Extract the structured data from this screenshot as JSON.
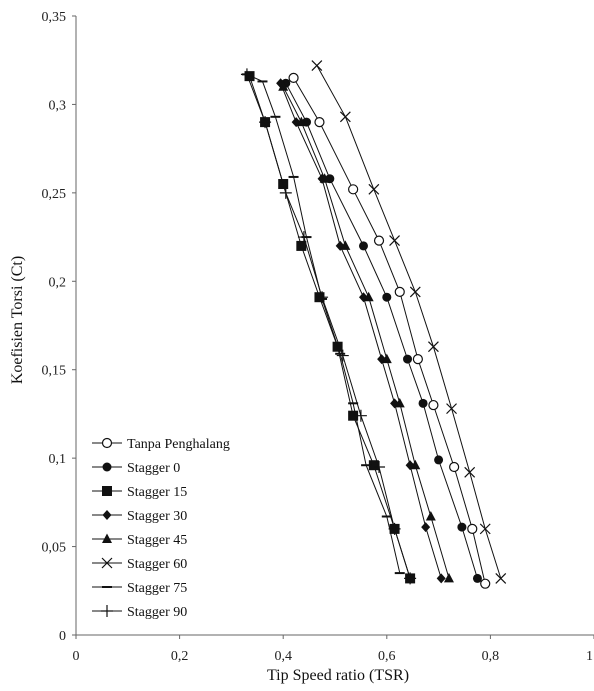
{
  "chart_data": {
    "type": "line",
    "title": "",
    "xlabel": "Tip Speed ratio (TSR)",
    "ylabel": "Koefisien Torsi (Ct)",
    "xlim": [
      0,
      1
    ],
    "ylim": [
      0,
      0.35
    ],
    "xticks": [
      "0",
      "0,2",
      "0,4",
      "0,6",
      "0,8",
      "1"
    ],
    "yticks": [
      "0",
      "0,05",
      "0,1",
      "0,15",
      "0,2",
      "0,25",
      "0,3",
      "0,35"
    ],
    "xtick_values": [
      0,
      0.2,
      0.4,
      0.6,
      0.8,
      1.0
    ],
    "ytick_values": [
      0,
      0.05,
      0.1,
      0.15,
      0.2,
      0.25,
      0.3,
      0.35
    ],
    "grid": false,
    "legend_position": "bottom-left",
    "series": [
      {
        "name": "Tanpa Penghalang",
        "marker": "open-circle",
        "points": [
          [
            0.42,
            0.315
          ],
          [
            0.47,
            0.29
          ],
          [
            0.535,
            0.252
          ],
          [
            0.585,
            0.223
          ],
          [
            0.625,
            0.194
          ],
          [
            0.66,
            0.156
          ],
          [
            0.69,
            0.13
          ],
          [
            0.73,
            0.095
          ],
          [
            0.765,
            0.06
          ],
          [
            0.79,
            0.029
          ]
        ]
      },
      {
        "name": "Stagger 0",
        "marker": "filled-circle",
        "points": [
          [
            0.405,
            0.312
          ],
          [
            0.445,
            0.29
          ],
          [
            0.49,
            0.258
          ],
          [
            0.555,
            0.22
          ],
          [
            0.6,
            0.191
          ],
          [
            0.64,
            0.156
          ],
          [
            0.67,
            0.131
          ],
          [
            0.7,
            0.099
          ],
          [
            0.745,
            0.061
          ],
          [
            0.775,
            0.032
          ]
        ]
      },
      {
        "name": "Stagger 15",
        "marker": "filled-square",
        "points": [
          [
            0.335,
            0.316
          ],
          [
            0.365,
            0.29
          ],
          [
            0.4,
            0.255
          ],
          [
            0.435,
            0.22
          ],
          [
            0.47,
            0.191
          ],
          [
            0.505,
            0.163
          ],
          [
            0.535,
            0.124
          ],
          [
            0.575,
            0.096
          ],
          [
            0.615,
            0.06
          ],
          [
            0.645,
            0.032
          ]
        ]
      },
      {
        "name": "Stagger 30",
        "marker": "filled-diamond",
        "points": [
          [
            0.395,
            0.312
          ],
          [
            0.425,
            0.29
          ],
          [
            0.475,
            0.258
          ],
          [
            0.51,
            0.22
          ],
          [
            0.555,
            0.191
          ],
          [
            0.59,
            0.156
          ],
          [
            0.615,
            0.131
          ],
          [
            0.645,
            0.096
          ],
          [
            0.675,
            0.061
          ],
          [
            0.705,
            0.032
          ]
        ]
      },
      {
        "name": "Stagger 45",
        "marker": "filled-triangle",
        "points": [
          [
            0.4,
            0.31
          ],
          [
            0.435,
            0.29
          ],
          [
            0.48,
            0.258
          ],
          [
            0.52,
            0.22
          ],
          [
            0.565,
            0.191
          ],
          [
            0.6,
            0.156
          ],
          [
            0.625,
            0.131
          ],
          [
            0.655,
            0.096
          ],
          [
            0.685,
            0.067
          ],
          [
            0.72,
            0.032
          ]
        ]
      },
      {
        "name": "Stagger 60",
        "marker": "x",
        "points": [
          [
            0.465,
            0.322
          ],
          [
            0.52,
            0.293
          ],
          [
            0.575,
            0.252
          ],
          [
            0.615,
            0.223
          ],
          [
            0.655,
            0.194
          ],
          [
            0.69,
            0.163
          ],
          [
            0.725,
            0.128
          ],
          [
            0.76,
            0.092
          ],
          [
            0.79,
            0.06
          ],
          [
            0.82,
            0.032
          ]
        ]
      },
      {
        "name": "Stagger 75",
        "marker": "dash",
        "points": [
          [
            0.33,
            0.317
          ],
          [
            0.36,
            0.313
          ],
          [
            0.385,
            0.293
          ],
          [
            0.42,
            0.259
          ],
          [
            0.445,
            0.225
          ],
          [
            0.475,
            0.19
          ],
          [
            0.51,
            0.159
          ],
          [
            0.535,
            0.131
          ],
          [
            0.56,
            0.096
          ],
          [
            0.6,
            0.067
          ],
          [
            0.625,
            0.035
          ]
        ]
      },
      {
        "name": "Stagger 90",
        "marker": "plus",
        "points": [
          [
            0.33,
            0.317
          ],
          [
            0.365,
            0.29
          ],
          [
            0.405,
            0.25
          ],
          [
            0.44,
            0.225
          ],
          [
            0.475,
            0.191
          ],
          [
            0.515,
            0.158
          ],
          [
            0.55,
            0.124
          ],
          [
            0.585,
            0.095
          ],
          [
            0.615,
            0.06
          ],
          [
            0.645,
            0.032
          ]
        ]
      }
    ]
  }
}
